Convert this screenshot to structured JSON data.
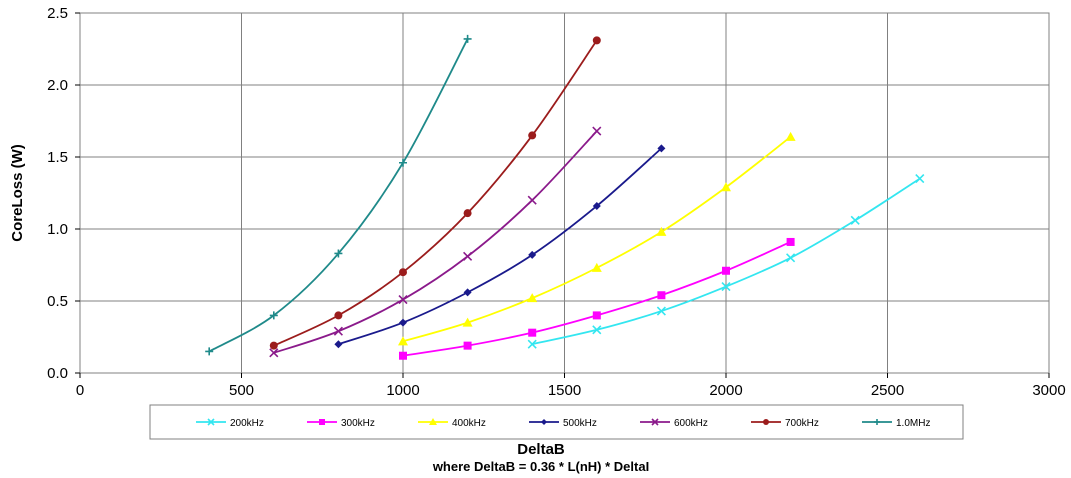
{
  "chart_data": {
    "type": "line",
    "xlabel": "DeltaB",
    "xlabel_sub": "where DeltaB = 0.36 * L(nH) * DeltaI",
    "ylabel": "CoreLoss (W)",
    "xlim": [
      0,
      3000
    ],
    "ylim": [
      0,
      2.5
    ],
    "x_ticks": [
      "0",
      "500",
      "1000",
      "1500",
      "2000",
      "2500",
      "3000"
    ],
    "y_ticks": [
      "0.0",
      "0.5",
      "1.0",
      "1.5",
      "2.0",
      "2.5"
    ],
    "grid": true,
    "legend_position": "bottom",
    "series": [
      {
        "name": "200kHz",
        "color": "#33e6f0",
        "marker": "x",
        "x": [
          1400,
          1600,
          1800,
          2000,
          2200,
          2400,
          2600
        ],
        "y": [
          0.2,
          0.3,
          0.43,
          0.6,
          0.8,
          1.06,
          1.35
        ]
      },
      {
        "name": "300kHz",
        "color": "#ff00ff",
        "marker": "square",
        "x": [
          1000,
          1200,
          1400,
          1600,
          1800,
          2000,
          2200
        ],
        "y": [
          0.12,
          0.19,
          0.28,
          0.4,
          0.54,
          0.71,
          0.91
        ]
      },
      {
        "name": "400kHz",
        "color": "#ffff00",
        "marker": "triangle",
        "x": [
          1000,
          1200,
          1400,
          1600,
          1800,
          2000,
          2200
        ],
        "y": [
          0.22,
          0.35,
          0.52,
          0.73,
          0.98,
          1.29,
          1.64
        ]
      },
      {
        "name": "500kHz",
        "color": "#1a1a8c",
        "marker": "diamond",
        "x": [
          800,
          1000,
          1200,
          1400,
          1600,
          1800
        ],
        "y": [
          0.2,
          0.35,
          0.56,
          0.82,
          1.16,
          1.56
        ]
      },
      {
        "name": "600kHz",
        "color": "#8b1a8b",
        "marker": "x",
        "x": [
          600,
          800,
          1000,
          1200,
          1400,
          1600
        ],
        "y": [
          0.14,
          0.29,
          0.51,
          0.81,
          1.2,
          1.68
        ]
      },
      {
        "name": "700kHz",
        "color": "#9b1c1c",
        "marker": "circle",
        "x": [
          600,
          800,
          1000,
          1200,
          1400,
          1600
        ],
        "y": [
          0.19,
          0.4,
          0.7,
          1.11,
          1.65,
          2.31
        ]
      },
      {
        "name": "1.0MHz",
        "color": "#1f8a8a",
        "marker": "plus",
        "x": [
          400,
          600,
          800,
          1000,
          1200
        ],
        "y": [
          0.15,
          0.4,
          0.83,
          1.46,
          2.32
        ]
      }
    ]
  }
}
